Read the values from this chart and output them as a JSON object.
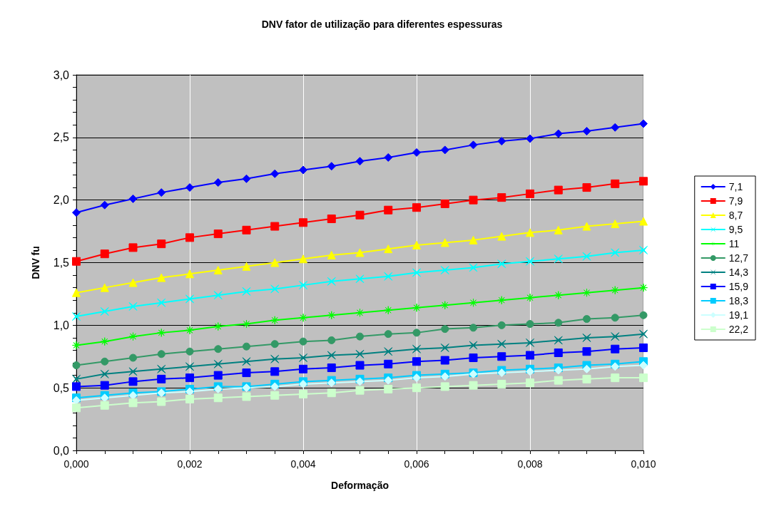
{
  "chart_data": {
    "type": "line",
    "title": "DNV fator de utilização para diferentes espessuras",
    "xlabel": "Deformação",
    "ylabel": "DNV fu",
    "x": [
      0,
      0.0005,
      0.001,
      0.0015,
      0.002,
      0.0025,
      0.003,
      0.0035,
      0.004,
      0.0045,
      0.005,
      0.0055,
      0.006,
      0.0065,
      0.007,
      0.0075,
      0.008,
      0.0085,
      0.009,
      0.0095,
      0.01
    ],
    "xlim": [
      0,
      0.01
    ],
    "xticks": [
      {
        "value": 0,
        "label": "0,000"
      },
      {
        "value": 0.0005,
        "label": null
      },
      {
        "value": 0.001,
        "label": null
      },
      {
        "value": 0.0015,
        "label": null
      },
      {
        "value": 0.002,
        "label": "0,002"
      },
      {
        "value": 0.0025,
        "label": null
      },
      {
        "value": 0.003,
        "label": null
      },
      {
        "value": 0.0035,
        "label": null
      },
      {
        "value": 0.004,
        "label": "0,004"
      },
      {
        "value": 0.0045,
        "label": null
      },
      {
        "value": 0.005,
        "label": null
      },
      {
        "value": 0.0055,
        "label": null
      },
      {
        "value": 0.006,
        "label": "0,006"
      },
      {
        "value": 0.0065,
        "label": null
      },
      {
        "value": 0.007,
        "label": null
      },
      {
        "value": 0.0075,
        "label": null
      },
      {
        "value": 0.008,
        "label": "0,008"
      },
      {
        "value": 0.0085,
        "label": null
      },
      {
        "value": 0.009,
        "label": null
      },
      {
        "value": 0.0095,
        "label": null
      },
      {
        "value": 0.01,
        "label": "0,010"
      }
    ],
    "ylim": [
      0,
      3
    ],
    "yticks": [
      {
        "value": 0,
        "label": "0,0"
      },
      {
        "value": 0.1,
        "label": null
      },
      {
        "value": 0.2,
        "label": null
      },
      {
        "value": 0.3,
        "label": null
      },
      {
        "value": 0.4,
        "label": null
      },
      {
        "value": 0.5,
        "label": "0,5"
      },
      {
        "value": 0.6,
        "label": null
      },
      {
        "value": 0.7,
        "label": null
      },
      {
        "value": 0.8,
        "label": null
      },
      {
        "value": 0.9,
        "label": null
      },
      {
        "value": 1,
        "label": "1,0"
      },
      {
        "value": 1.1,
        "label": null
      },
      {
        "value": 1.2,
        "label": null
      },
      {
        "value": 1.3,
        "label": null
      },
      {
        "value": 1.4,
        "label": null
      },
      {
        "value": 1.5,
        "label": "1,5"
      },
      {
        "value": 1.6,
        "label": null
      },
      {
        "value": 1.7,
        "label": null
      },
      {
        "value": 1.8,
        "label": null
      },
      {
        "value": 1.9,
        "label": null
      },
      {
        "value": 2,
        "label": "2,0"
      },
      {
        "value": 2.1,
        "label": null
      },
      {
        "value": 2.2,
        "label": null
      },
      {
        "value": 2.3,
        "label": null
      },
      {
        "value": 2.4,
        "label": null
      },
      {
        "value": 2.5,
        "label": "2,5"
      },
      {
        "value": 2.6,
        "label": null
      },
      {
        "value": 2.7,
        "label": null
      },
      {
        "value": 2.8,
        "label": null
      },
      {
        "value": 2.9,
        "label": null
      },
      {
        "value": 3,
        "label": "3,0"
      }
    ],
    "grid": true,
    "legend": "right",
    "line_style": "solid",
    "series": [
      {
        "name": "7,1",
        "color": "#0000ff",
        "marker": "diamond",
        "values": [
          1.9,
          1.96,
          2.01,
          2.06,
          2.1,
          2.14,
          2.17,
          2.21,
          2.24,
          2.27,
          2.31,
          2.34,
          2.38,
          2.4,
          2.44,
          2.47,
          2.49,
          2.53,
          2.55,
          2.58,
          2.61
        ]
      },
      {
        "name": "7,9",
        "color": "#ff0000",
        "marker": "square",
        "values": [
          1.51,
          1.57,
          1.62,
          1.65,
          1.7,
          1.73,
          1.76,
          1.79,
          1.82,
          1.85,
          1.88,
          1.92,
          1.94,
          1.97,
          2.0,
          2.02,
          2.05,
          2.08,
          2.1,
          2.13,
          2.15
        ]
      },
      {
        "name": "8,7",
        "color": "#ffff00",
        "marker": "triangle",
        "values": [
          1.26,
          1.3,
          1.34,
          1.38,
          1.41,
          1.44,
          1.47,
          1.5,
          1.53,
          1.56,
          1.58,
          1.61,
          1.64,
          1.66,
          1.68,
          1.71,
          1.74,
          1.76,
          1.79,
          1.81,
          1.83
        ]
      },
      {
        "name": "9,5",
        "color": "#00ffff",
        "marker": "cross",
        "values": [
          1.07,
          1.11,
          1.15,
          1.18,
          1.21,
          1.24,
          1.27,
          1.29,
          1.32,
          1.35,
          1.37,
          1.39,
          1.42,
          1.44,
          1.46,
          1.49,
          1.51,
          1.53,
          1.55,
          1.58,
          1.6
        ]
      },
      {
        "name": "11",
        "color": "#00ff00",
        "marker": "star",
        "values": [
          0.84,
          0.87,
          0.91,
          0.94,
          0.96,
          0.99,
          1.01,
          1.04,
          1.06,
          1.08,
          1.1,
          1.12,
          1.14,
          1.16,
          1.18,
          1.2,
          1.22,
          1.24,
          1.26,
          1.28,
          1.3
        ]
      },
      {
        "name": "12,7",
        "color": "#339966",
        "marker": "circle",
        "values": [
          0.68,
          0.71,
          0.74,
          0.77,
          0.79,
          0.81,
          0.83,
          0.85,
          0.87,
          0.88,
          0.91,
          0.93,
          0.94,
          0.97,
          0.98,
          1.0,
          1.01,
          1.02,
          1.05,
          1.06,
          1.08
        ]
      },
      {
        "name": "14,3",
        "color": "#008080",
        "marker": "cross",
        "values": [
          0.57,
          0.61,
          0.63,
          0.65,
          0.67,
          0.69,
          0.71,
          0.73,
          0.74,
          0.76,
          0.77,
          0.79,
          0.81,
          0.82,
          0.84,
          0.85,
          0.86,
          0.88,
          0.9,
          0.91,
          0.93
        ]
      },
      {
        "name": "15,9",
        "color": "#0000ff",
        "marker": "square",
        "values": [
          0.51,
          0.52,
          0.55,
          0.57,
          0.58,
          0.6,
          0.62,
          0.63,
          0.65,
          0.66,
          0.68,
          0.69,
          0.71,
          0.72,
          0.74,
          0.75,
          0.76,
          0.78,
          0.79,
          0.81,
          0.82
        ]
      },
      {
        "name": "18,3",
        "color": "#00ccff",
        "marker": "square",
        "values": [
          0.42,
          0.44,
          0.46,
          0.47,
          0.49,
          0.51,
          0.51,
          0.53,
          0.55,
          0.56,
          0.57,
          0.58,
          0.6,
          0.61,
          0.62,
          0.64,
          0.65,
          0.66,
          0.68,
          0.69,
          0.71
        ]
      },
      {
        "name": "19,1",
        "color": "#ccffff",
        "marker": "diamond",
        "values": [
          0.4,
          0.42,
          0.44,
          0.46,
          0.47,
          0.49,
          0.5,
          0.51,
          0.53,
          0.54,
          0.55,
          0.56,
          0.58,
          0.59,
          0.61,
          0.62,
          0.63,
          0.64,
          0.65,
          0.67,
          0.68
        ]
      },
      {
        "name": "22,2",
        "color": "#ccffcc",
        "marker": "square",
        "values": [
          0.34,
          0.36,
          0.38,
          0.39,
          0.41,
          0.42,
          0.43,
          0.44,
          0.45,
          0.46,
          0.48,
          0.49,
          0.5,
          0.51,
          0.52,
          0.53,
          0.54,
          0.56,
          0.57,
          0.58,
          0.58
        ]
      }
    ]
  }
}
